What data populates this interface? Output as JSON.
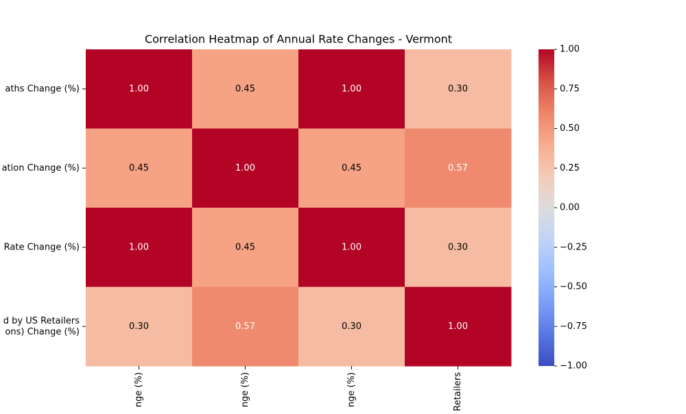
{
  "chart_data": {
    "type": "heatmap",
    "title": "Correlation Heatmap of Annual Rate Changes - Vermont",
    "y_categories": [
      "aths Change (%)",
      "ation Change (%)",
      "Rate Change (%)",
      [
        "d by US Retailers",
        "ons) Change (%)"
      ]
    ],
    "x_categories": [
      "nge (%)",
      "nge (%)",
      "nge (%)",
      "Retailers"
    ],
    "values": [
      [
        1.0,
        0.45,
        1.0,
        0.3
      ],
      [
        0.45,
        1.0,
        0.45,
        0.57
      ],
      [
        1.0,
        0.45,
        1.0,
        0.3
      ],
      [
        0.3,
        0.57,
        0.3,
        1.0
      ]
    ],
    "value_labels": [
      [
        "1.00",
        "0.45",
        "1.00",
        "0.30"
      ],
      [
        "0.45",
        "1.00",
        "0.45",
        "0.57"
      ],
      [
        "1.00",
        "0.45",
        "1.00",
        "0.30"
      ],
      [
        "0.30",
        "0.57",
        "0.30",
        "1.00"
      ]
    ],
    "colormap": "coolwarm",
    "clim": [
      -1,
      1
    ],
    "cticks": [
      {
        "value": -1,
        "label": "−1.00"
      },
      {
        "value": -0.75,
        "label": "−0.75"
      },
      {
        "value": -0.5,
        "label": "−0.50"
      },
      {
        "value": -0.25,
        "label": "−0.25"
      },
      {
        "value": 0,
        "label": "0.00"
      },
      {
        "value": 0.25,
        "label": "0.25"
      },
      {
        "value": 0.5,
        "label": "0.50"
      },
      {
        "value": 0.75,
        "label": "0.75"
      },
      {
        "value": 1,
        "label": "1.00"
      }
    ]
  }
}
